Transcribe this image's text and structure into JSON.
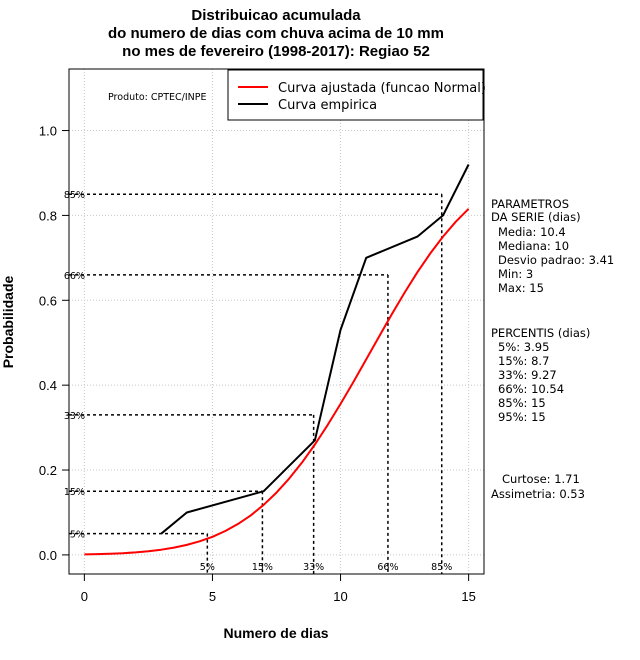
{
  "chart_data": {
    "type": "line",
    "title": [
      "Distribuicao acumulada",
      "do numero de dias com chuva acima de 10 mm",
      "no mes de fevereiro (1998-2017): Regiao 52"
    ],
    "xlabel": "Numero de dias",
    "ylabel": "Probabilidade",
    "xlim": [
      -0.6,
      15.6
    ],
    "ylim": [
      -0.045,
      1.145
    ],
    "xticks": [
      0,
      5,
      10,
      15
    ],
    "yticks": [
      0.0,
      0.2,
      0.4,
      0.6,
      0.8,
      1.0
    ],
    "xtick_labels": [
      "0",
      "5",
      "10",
      "15"
    ],
    "ytick_labels": [
      "0.0",
      "0.2",
      "0.4",
      "0.6",
      "0.8",
      "1.0"
    ],
    "grid": true,
    "product_label": "Produto: CPTEC/INPE",
    "legend": {
      "placement": "top-right",
      "entries": [
        {
          "label": "Curva ajustada (funcao Normal)",
          "color": "#ff0000"
        },
        {
          "label": "Curva empirica",
          "color": "#000000"
        }
      ]
    },
    "series": [
      {
        "name": "Curva ajustada (funcao Normal)",
        "color": "#ff0000",
        "x": [
          0,
          0.5,
          1,
          1.5,
          2,
          2.5,
          3,
          3.5,
          4,
          4.5,
          5,
          5.5,
          6,
          6.5,
          7,
          7.5,
          8,
          8.5,
          9,
          9.5,
          10,
          10.5,
          11,
          11.5,
          12,
          12.5,
          13,
          13.5,
          14,
          14.5,
          15
        ],
        "y": [
          0.0012,
          0.0018,
          0.0028,
          0.0041,
          0.006,
          0.0086,
          0.0122,
          0.0171,
          0.0235,
          0.032,
          0.0427,
          0.0563,
          0.073,
          0.0934,
          0.118,
          0.1468,
          0.1802,
          0.218,
          0.2602,
          0.3063,
          0.3556,
          0.4074,
          0.4606,
          0.5142,
          0.567,
          0.6181,
          0.6661,
          0.7102,
          0.7501,
          0.7852,
          0.8156
        ]
      },
      {
        "name": "Curva empirica",
        "color": "#000000",
        "x": [
          3,
          4,
          7,
          9,
          10,
          11,
          13,
          14,
          15
        ],
        "y": [
          0.05,
          0.1,
          0.15,
          0.27,
          0.53,
          0.7,
          0.75,
          0.8,
          0.92
        ]
      }
    ],
    "percentile_markers": [
      {
        "label": "5%",
        "prob": 0.05,
        "days": 4.8
      },
      {
        "label": "15%",
        "prob": 0.15,
        "days": 6.95
      },
      {
        "label": "33%",
        "prob": 0.33,
        "days": 8.95
      },
      {
        "label": "66%",
        "prob": 0.66,
        "days": 11.85
      },
      {
        "label": "85%",
        "prob": 0.85,
        "days": 13.95
      }
    ],
    "parameters": {
      "heading": [
        "PARAMETROS",
        "DA SERIE (dias)"
      ],
      "lines": [
        "Media: 10.4",
        "Mediana: 10",
        "Desvio padrao: 3.41",
        "Min: 3",
        "Max: 15"
      ]
    },
    "percentis": {
      "heading": "PERCENTIS (dias)",
      "lines": [
        "5%: 3.95",
        "15%: 8.7",
        "33%: 9.27",
        "66%: 10.54",
        "85%: 15",
        "95%: 15"
      ]
    },
    "shape": {
      "lines": [
        "Curtose: 1.71",
        "Assimetria: 0.53"
      ]
    }
  }
}
